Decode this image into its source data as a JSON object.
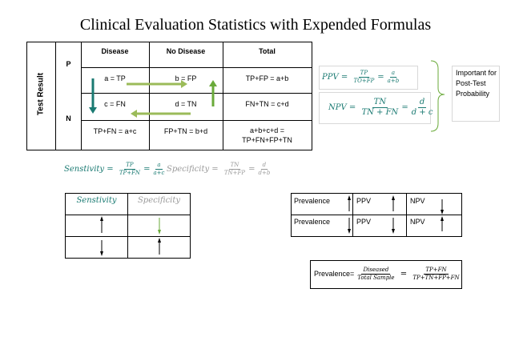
{
  "title": "Clinical Evaluation Statistics with Expended Formulas",
  "contingency": {
    "row_axis_label": "Test Result",
    "row_p": "P",
    "row_n": "N",
    "col_disease": "Disease",
    "col_no_disease": "No Disease",
    "col_total": "Total",
    "tp": "a = TP",
    "fp": "b = FP",
    "row_p_total": "TP+FP = a+b",
    "fn": "c = FN",
    "tn": "d = TN",
    "row_n_total": "FN+TN = c+d",
    "col_disease_total": "TP+FN = a+c",
    "col_no_disease_total": "FP+TN = b+d",
    "grand_total_1": "a+b+c+d =",
    "grand_total_2": "TP+FN+FP+TN"
  },
  "ppv": {
    "lhs": "PPV",
    "num1": "TP",
    "den1": "TO+FP",
    "num2": "a",
    "den2": "a+b"
  },
  "npv": {
    "lhs": "NPV",
    "num1": "TN",
    "den1": "TN + FN",
    "num2": "d",
    "den2": "d + c"
  },
  "brace_note": "Important for Post-Test Probability",
  "sensitivity": {
    "lhs": "Senstivity",
    "num1": "TP",
    "den1": "TP+FN",
    "num2": "a",
    "den2": "a+c"
  },
  "specificity": {
    "lhs": "Specificity",
    "num1": "TN",
    "den1": "TN+FP",
    "num2": "d",
    "den2": "d+b"
  },
  "sens_spec_table": {
    "head_sens": "Senstivity",
    "head_spec": "Specificity"
  },
  "prev_table": {
    "prevalence": "Prevalence",
    "ppv": "PPV",
    "npv": "NPV"
  },
  "prev_formula": {
    "lhs": "Prevalence=",
    "num1": "Diseased",
    "den1": "Total Sample",
    "num2": "TP+FN",
    "den2": "TP+TN+FP+FN"
  },
  "colors": {
    "teal": "#1a7a72",
    "light_green": "#9bbb59",
    "green": "#6aaa3a",
    "gray": "#9a9a9a"
  }
}
